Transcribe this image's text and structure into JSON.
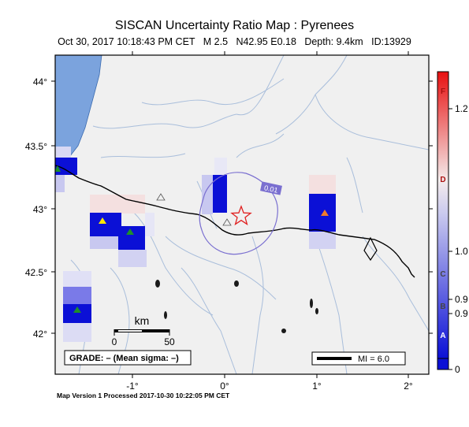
{
  "title": "SISCAN Uncertainty Ratio Map : Pyrenees",
  "subtitle": {
    "datetime": "Oct 30, 2017 10:18:43 PM CET",
    "magnitude": "M 2.5",
    "coords": "N42.95 E0.18",
    "depth": "Depth: 9.4km",
    "id": "ID:13929"
  },
  "map": {
    "lon_ticks": [
      {
        "label": "-1°",
        "value": -1
      },
      {
        "label": "0°",
        "value": 0
      },
      {
        "label": "1°",
        "value": 1
      },
      {
        "label": "2°",
        "value": 2
      }
    ],
    "lat_ticks": [
      {
        "label": "44°",
        "value": 44
      },
      {
        "label": "43.5°",
        "value": 43.5
      },
      {
        "label": "43°",
        "value": 43
      },
      {
        "label": "42.5°",
        "value": 42.5
      },
      {
        "label": "42°",
        "value": 42
      }
    ],
    "contour_label": "0.01",
    "scale_bar": {
      "unit": "km",
      "tick0": "0",
      "tick1": "50"
    },
    "grade_label": "GRADE: – (Mean sigma: –)",
    "mi_label": "MI = 6.0"
  },
  "colorbar": {
    "letters": [
      "F",
      "D",
      "C",
      "B",
      "A"
    ],
    "values": [
      "1.2",
      "1.0",
      "0.9",
      "0.9",
      "0"
    ]
  },
  "footer": "Map Version 1 Processed 2017-10-30 10:22:05 PM CET",
  "colors": {
    "sea": "#7ba3dd",
    "land": "#f0f0f0",
    "rivers": "#a9bedb",
    "cell_blue": "#0b10d6",
    "contour": "#7a6fd0",
    "epicenter_star": "#e02020"
  }
}
